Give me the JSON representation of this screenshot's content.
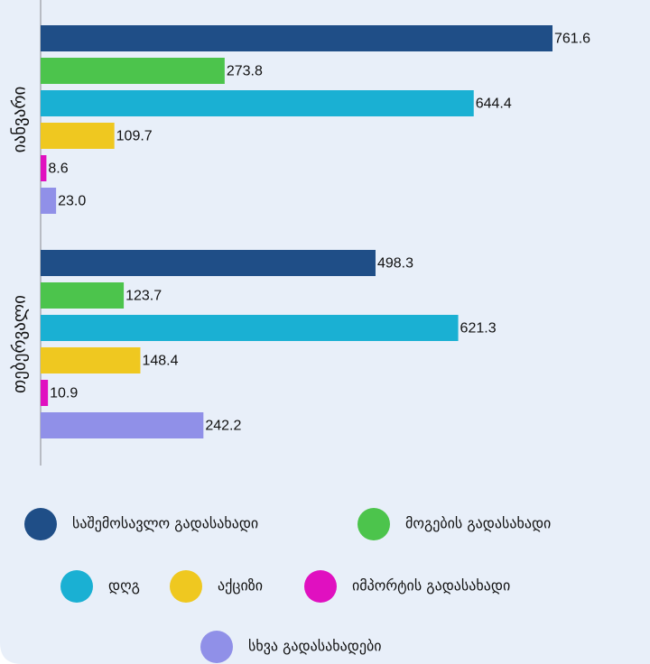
{
  "chart_data": {
    "type": "hbar",
    "categories": [
      "იანვარი",
      "თებერვალი"
    ],
    "series": [
      {
        "name": "საშემოსავლო გადასახადი",
        "color": "#1f4e87",
        "values": [
          761.6,
          498.3
        ]
      },
      {
        "name": "მოგების გადასახადი",
        "color": "#4cc44c",
        "values": [
          273.8,
          123.7
        ]
      },
      {
        "name": "დღგ",
        "color": "#1ab0d3",
        "values": [
          644.4,
          621.3
        ]
      },
      {
        "name": "აქციზი",
        "color": "#efc820",
        "values": [
          109.7,
          148.4
        ]
      },
      {
        "name": "იმპორტის გადასახადი",
        "color": "#e010c0",
        "values": [
          8.6,
          10.9
        ]
      },
      {
        "name": "სხვა გადასახადები",
        "color": "#9090e8",
        "values": [
          23.0,
          242.2
        ],
        "value_labels": [
          "23.0",
          "242.2"
        ]
      }
    ]
  }
}
